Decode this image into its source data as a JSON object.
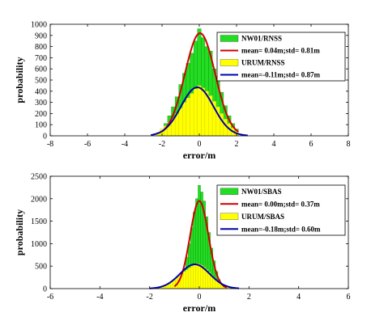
{
  "colors": {
    "histA": "#22dd22",
    "histB": "#ffff00",
    "fitA": "#d00000",
    "fitB": "#0000aa",
    "axis": "#000000"
  },
  "chart_data": [
    {
      "type": "bar",
      "xlabel": "error/m",
      "ylabel": "probability",
      "xlim": [
        -8,
        8
      ],
      "ylim": [
        0,
        1000
      ],
      "xticks": [
        "-8",
        "-6",
        "-4",
        "-2",
        "0",
        "2",
        "4",
        "6",
        "8"
      ],
      "yticks": [
        "0",
        "100",
        "200",
        "300",
        "400",
        "500",
        "600",
        "700",
        "800",
        "900",
        "1000"
      ],
      "legend_position": "top-right",
      "legend": [
        {
          "label": "NW01/RNSS",
          "kind": "patch",
          "color": "#22dd22"
        },
        {
          "label": "mean= 0.04m;std= 0.81m",
          "kind": "line",
          "color": "#d00000"
        },
        {
          "label": "URUM/RNSS",
          "kind": "patch",
          "color": "#ffff00"
        },
        {
          "label": "mean=-0.11m;std= 0.87m",
          "kind": "line",
          "color": "#0000aa"
        }
      ],
      "histograms": [
        {
          "color": "#22dd22",
          "bin_width": 0.2,
          "centers": [
            -2.0,
            -1.8,
            -1.6,
            -1.4,
            -1.2,
            -1.0,
            -0.8,
            -0.6,
            -0.4,
            -0.2,
            0.0,
            0.2,
            0.4,
            0.6,
            0.8,
            1.0,
            1.2,
            1.4,
            1.6,
            1.8,
            2.0
          ],
          "values": [
            60,
            110,
            180,
            260,
            350,
            460,
            560,
            650,
            740,
            850,
            960,
            880,
            800,
            760,
            600,
            520,
            390,
            270,
            180,
            110,
            60
          ]
        },
        {
          "color": "#ffff00",
          "bin_width": 0.2,
          "centers": [
            -2.2,
            -2.0,
            -1.8,
            -1.6,
            -1.4,
            -1.2,
            -1.0,
            -0.8,
            -0.6,
            -0.4,
            -0.2,
            0.0,
            0.2,
            0.4,
            0.6,
            0.8,
            1.0,
            1.2,
            1.4,
            1.6,
            1.8,
            2.0
          ],
          "values": [
            30,
            60,
            90,
            120,
            160,
            200,
            250,
            300,
            340,
            380,
            420,
            450,
            430,
            400,
            360,
            310,
            260,
            200,
            150,
            110,
            70,
            40
          ]
        }
      ],
      "series": [
        {
          "curve": "normal",
          "mean": 0.04,
          "std": 0.81,
          "peak": 920,
          "color": "#d00000",
          "range": [
            -2.0,
            2.1
          ]
        },
        {
          "curve": "normal",
          "mean": -0.11,
          "std": 0.87,
          "peak": 435,
          "color": "#0000aa",
          "range": [
            -2.6,
            2.6
          ]
        }
      ]
    },
    {
      "type": "bar",
      "xlabel": "error/m",
      "ylabel": "probability",
      "xlim": [
        -6,
        6
      ],
      "ylim": [
        0,
        2500
      ],
      "xticks": [
        "-6",
        "-4",
        "-2",
        "0",
        "2",
        "4",
        "6"
      ],
      "yticks": [
        "0",
        "500",
        "1000",
        "1500",
        "2000",
        "2500"
      ],
      "legend_position": "top-right",
      "legend": [
        {
          "label": "NW01/SBAS",
          "kind": "patch",
          "color": "#22dd22"
        },
        {
          "label": "mean= 0.00m;std= 0.37m",
          "kind": "line",
          "color": "#d00000"
        },
        {
          "label": "URUM/SBAS",
          "kind": "patch",
          "color": "#ffff00"
        },
        {
          "label": "mean=-0.18m;std= 0.60m",
          "kind": "line",
          "color": "#0000aa"
        }
      ],
      "histograms": [
        {
          "color": "#22dd22",
          "bin_width": 0.1,
          "centers": [
            -0.9,
            -0.8,
            -0.7,
            -0.6,
            -0.5,
            -0.4,
            -0.3,
            -0.2,
            -0.1,
            0.0,
            0.1,
            0.2,
            0.3,
            0.4,
            0.5,
            0.6,
            0.7,
            0.8,
            0.9
          ],
          "values": [
            60,
            140,
            260,
            450,
            700,
            1000,
            1350,
            1700,
            2000,
            2300,
            2150,
            1950,
            1600,
            1250,
            900,
            620,
            380,
            200,
            90
          ]
        },
        {
          "color": "#ffff00",
          "bin_width": 0.1,
          "centers": [
            -1.7,
            -1.6,
            -1.5,
            -1.4,
            -1.3,
            -1.2,
            -1.1,
            -1.0,
            -0.9,
            -0.8,
            -0.7,
            -0.6,
            -0.5,
            -0.4,
            -0.3,
            -0.2,
            -0.1,
            0.0,
            0.1,
            0.2,
            0.3,
            0.4,
            0.5,
            0.6,
            0.7,
            0.8,
            0.9,
            1.0,
            1.1,
            1.2,
            1.3,
            1.4
          ],
          "values": [
            15,
            25,
            40,
            60,
            85,
            115,
            150,
            195,
            240,
            285,
            330,
            380,
            420,
            460,
            500,
            540,
            560,
            545,
            520,
            480,
            430,
            370,
            310,
            250,
            190,
            140,
            100,
            65,
            40,
            25,
            15,
            8
          ]
        }
      ],
      "series": [
        {
          "curve": "normal",
          "mean": 0.0,
          "std": 0.37,
          "peak": 1950,
          "color": "#d00000",
          "range": [
            -1.0,
            1.1
          ]
        },
        {
          "curve": "normal",
          "mean": -0.18,
          "std": 0.6,
          "peak": 540,
          "color": "#0000aa",
          "range": [
            -2.0,
            1.6
          ]
        }
      ]
    }
  ]
}
